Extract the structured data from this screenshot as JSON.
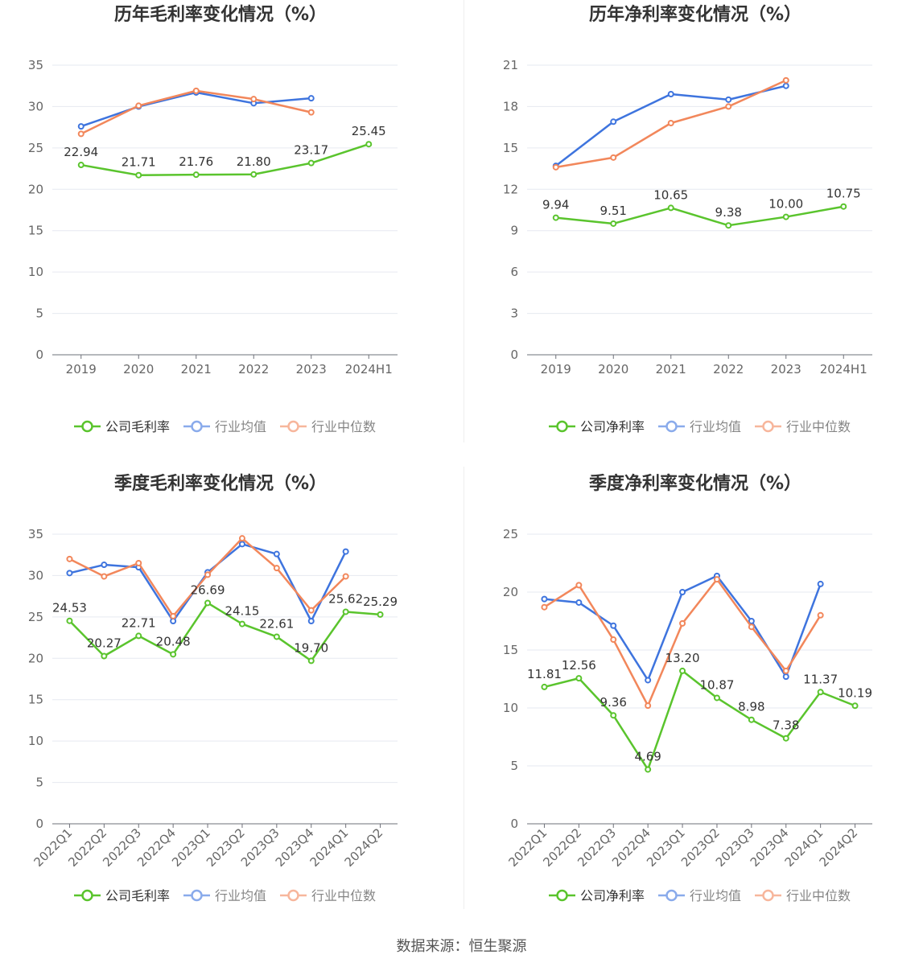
{
  "colors": {
    "company": "#5ac42d",
    "avg": "#3e74de",
    "median": "#f2875b"
  },
  "legend_icons": [
    "line-circle-icon",
    "line-circle-icon",
    "line-circle-icon"
  ],
  "source_text": "数据来源：恒生聚源",
  "chart_data": [
    {
      "type": "line",
      "title": "历年毛利率变化情况（%）",
      "categories": [
        "2019",
        "2020",
        "2021",
        "2022",
        "2023",
        "2024H1"
      ],
      "ylim": [
        0,
        35
      ],
      "yticks": [
        0,
        5,
        10,
        15,
        20,
        25,
        30,
        35
      ],
      "grid": true,
      "legend_position": "bottom",
      "rotate_x_labels": false,
      "series": [
        {
          "name": "公司毛利率",
          "key": "company",
          "values": [
            22.94,
            21.71,
            21.76,
            21.8,
            23.17,
            25.45
          ],
          "labels": [
            "22.94",
            "21.71",
            "21.76",
            "21.80",
            "23.17",
            "25.45"
          ]
        },
        {
          "name": "行业均值",
          "key": "avg",
          "values": [
            27.6,
            30.0,
            31.7,
            30.4,
            31.0,
            null
          ]
        },
        {
          "name": "行业中位数",
          "key": "median",
          "values": [
            26.7,
            30.1,
            31.9,
            30.9,
            29.3,
            null
          ]
        }
      ]
    },
    {
      "type": "line",
      "title": "历年净利率变化情况（%）",
      "categories": [
        "2019",
        "2020",
        "2021",
        "2022",
        "2023",
        "2024H1"
      ],
      "ylim": [
        0,
        21
      ],
      "yticks": [
        0,
        3,
        6,
        9,
        12,
        15,
        18,
        21
      ],
      "grid": true,
      "legend_position": "bottom",
      "rotate_x_labels": false,
      "series": [
        {
          "name": "公司净利率",
          "key": "company",
          "values": [
            9.94,
            9.51,
            10.65,
            9.38,
            10.0,
            10.75
          ],
          "labels": [
            "9.94",
            "9.51",
            "10.65",
            "9.38",
            "10.00",
            "10.75"
          ]
        },
        {
          "name": "行业均值",
          "key": "avg",
          "values": [
            13.7,
            16.9,
            18.9,
            18.5,
            19.5,
            null
          ]
        },
        {
          "name": "行业中位数",
          "key": "median",
          "values": [
            13.6,
            14.3,
            16.8,
            18.0,
            19.9,
            null
          ]
        }
      ]
    },
    {
      "type": "line",
      "title": "季度毛利率变化情况（%）",
      "categories": [
        "2022Q1",
        "2022Q2",
        "2022Q3",
        "2022Q4",
        "2023Q1",
        "2023Q2",
        "2023Q3",
        "2023Q4",
        "2024Q1",
        "2024Q2"
      ],
      "ylim": [
        0,
        35
      ],
      "yticks": [
        0,
        5,
        10,
        15,
        20,
        25,
        30,
        35
      ],
      "grid": true,
      "legend_position": "bottom",
      "rotate_x_labels": true,
      "series": [
        {
          "name": "公司毛利率",
          "key": "company",
          "values": [
            24.53,
            20.27,
            22.71,
            20.48,
            26.69,
            24.15,
            22.61,
            19.7,
            25.62,
            25.29
          ],
          "labels": [
            "24.53",
            "20.27",
            "22.71",
            "20.48",
            "26.69",
            "24.15",
            "22.61",
            "19.70",
            "25.62",
            "25.29"
          ]
        },
        {
          "name": "行业均值",
          "key": "avg",
          "values": [
            30.3,
            31.3,
            31.0,
            24.5,
            30.4,
            33.8,
            32.6,
            24.5,
            32.9,
            null
          ]
        },
        {
          "name": "行业中位数",
          "key": "median",
          "values": [
            32.0,
            29.9,
            31.5,
            25.1,
            30.1,
            34.5,
            30.9,
            25.8,
            29.9,
            null
          ]
        }
      ]
    },
    {
      "type": "line",
      "title": "季度净利率变化情况（%）",
      "categories": [
        "2022Q1",
        "2022Q2",
        "2022Q3",
        "2022Q4",
        "2023Q1",
        "2023Q2",
        "2023Q3",
        "2023Q4",
        "2024Q1",
        "2024Q2"
      ],
      "ylim": [
        0,
        25
      ],
      "yticks": [
        0,
        5,
        10,
        15,
        20,
        25
      ],
      "grid": true,
      "legend_position": "bottom",
      "rotate_x_labels": true,
      "series": [
        {
          "name": "公司净利率",
          "key": "company",
          "values": [
            11.81,
            12.56,
            9.36,
            4.69,
            13.2,
            10.87,
            8.98,
            7.38,
            11.37,
            10.19
          ],
          "labels": [
            "11.81",
            "12.56",
            "9.36",
            "4.69",
            "13.20",
            "10.87",
            "8.98",
            "7.38",
            "11.37",
            "10.19"
          ]
        },
        {
          "name": "行业均值",
          "key": "avg",
          "values": [
            19.4,
            19.1,
            17.1,
            12.4,
            20.0,
            21.4,
            17.5,
            12.7,
            20.7,
            null
          ]
        },
        {
          "name": "行业中位数",
          "key": "median",
          "values": [
            18.7,
            20.6,
            15.9,
            10.2,
            17.3,
            21.1,
            17.0,
            13.2,
            18.0,
            null
          ]
        }
      ]
    }
  ]
}
